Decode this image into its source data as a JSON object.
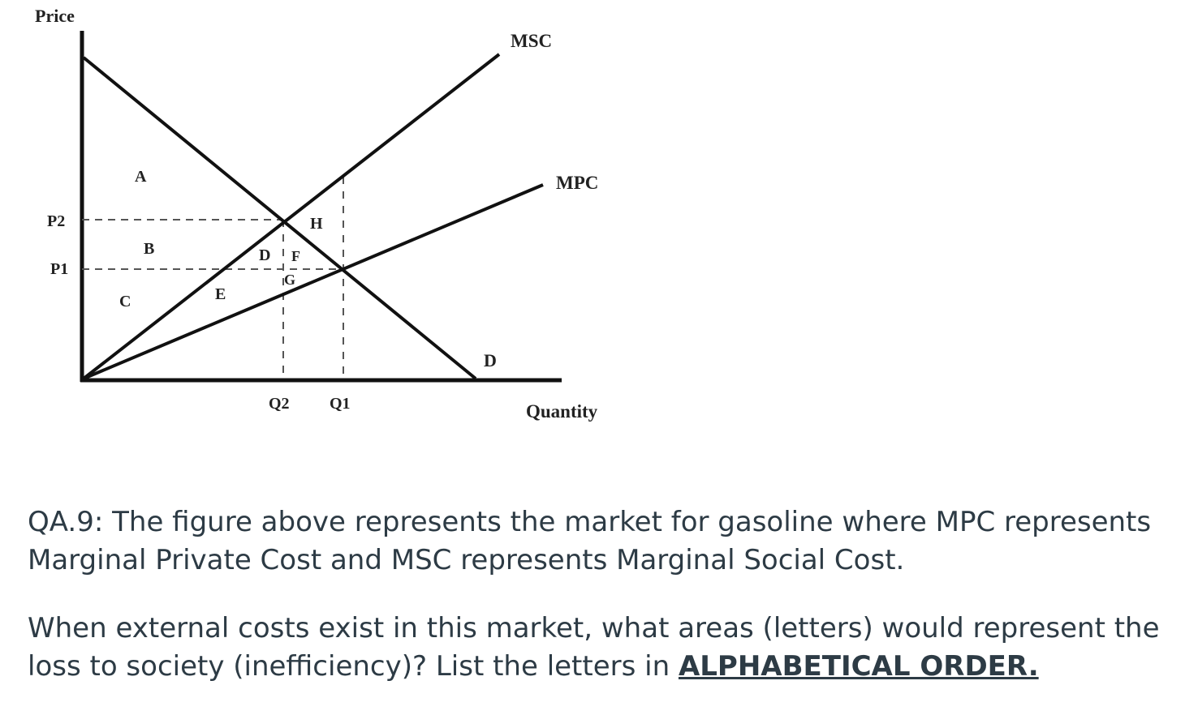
{
  "figure": {
    "axis_labels": {
      "y": "Price",
      "x": "Quantity"
    },
    "price_labels": {
      "p2": "P2",
      "p1": "P1"
    },
    "quantity_labels": {
      "q2": "Q2",
      "q1": "Q1"
    },
    "curve_labels": {
      "msc": "MSC",
      "mpc": "MPC",
      "demand": "D"
    },
    "area_labels": {
      "a": "A",
      "b": "B",
      "c": "C",
      "d": "D",
      "e": "E",
      "f": "F",
      "g": "G",
      "h": "H"
    }
  },
  "question": {
    "paragraph1": "QA.9: The figure above represents the market for gasoline where MPC represents Marginal Private Cost and MSC represents Marginal Social Cost.",
    "paragraph2_text": "When external costs exist in this market, what areas (letters) would represent the loss to society (inefficiency)? List the letters in ",
    "paragraph2_emphasis": "ALPHABETICAL ORDER."
  },
  "colors": {
    "ink": "#111111",
    "question_text": "#2d3b45"
  }
}
